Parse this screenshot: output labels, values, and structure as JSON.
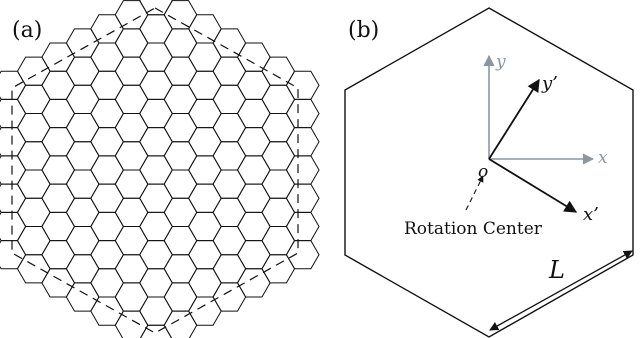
{
  "panels": {
    "a": {
      "label": "(a)"
    },
    "b": {
      "label": "(b)",
      "axes": {
        "original": {
          "x_label": "x",
          "y_label": "y",
          "color": "#8a97a3"
        },
        "rotated": {
          "x_label": "x’",
          "y_label": "y’",
          "color": "#111111"
        }
      },
      "origin_label": "o",
      "rotation_center_label": "Rotation Center",
      "length_label": "L"
    }
  },
  "style": {
    "line_color": "#111111",
    "gray_axis_color": "#8a97a3"
  }
}
